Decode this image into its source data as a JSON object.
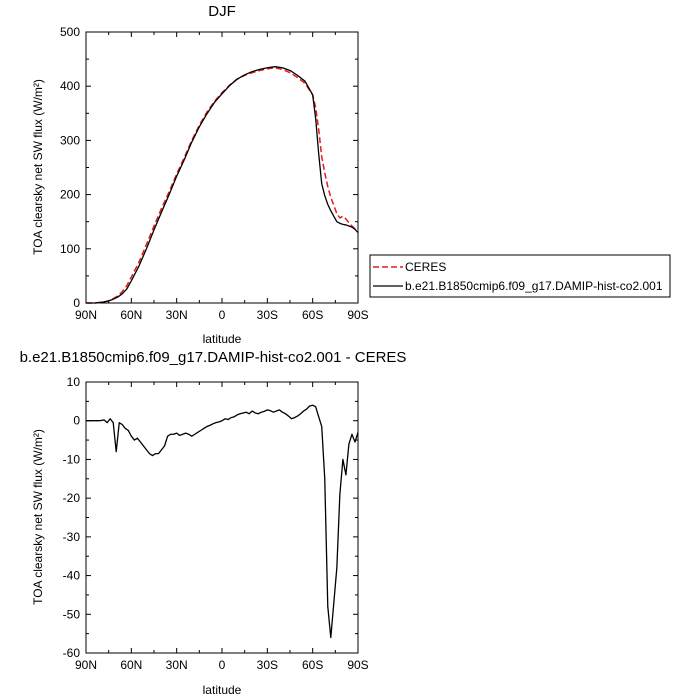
{
  "chart_data": [
    {
      "type": "line",
      "title": "DJF",
      "xlabel": "latitude",
      "ylabel": "TOA clearsky net SW flux (W/m²)",
      "xlim": [
        -90,
        90
      ],
      "ylim": [
        0,
        500
      ],
      "x_ticks": [
        -90,
        -60,
        -30,
        0,
        30,
        60,
        90
      ],
      "x_tick_labels": [
        "90N",
        "60N",
        "30N",
        "0",
        "30S",
        "60S",
        "90S"
      ],
      "y_ticks": [
        0,
        100,
        200,
        300,
        400,
        500
      ],
      "y_tick_labels": [
        "0",
        "100",
        "200",
        "300",
        "400",
        "500"
      ],
      "legend": {
        "placement": "right",
        "entries": [
          "CERES",
          "b.e21.B1850cmip6.f09_g17.DAMIP-hist-co2.001"
        ]
      },
      "series": [
        {
          "name": "CERES",
          "color": "#e41a1c",
          "dash": "dashed",
          "x": [
            -90,
            -87,
            -84,
            -81,
            -78,
            -75,
            -72,
            -69,
            -66,
            -63,
            -60,
            -55,
            -50,
            -45,
            -40,
            -35,
            -30,
            -25,
            -20,
            -15,
            -10,
            -5,
            0,
            5,
            10,
            15,
            20,
            25,
            30,
            35,
            40,
            45,
            50,
            55,
            60,
            62,
            64,
            66,
            68,
            70,
            72,
            74,
            76,
            78,
            80,
            82,
            84,
            86,
            88,
            90
          ],
          "y": [
            0,
            0,
            0,
            1,
            2,
            4,
            8,
            13,
            21,
            32,
            48,
            75,
            108,
            142,
            175,
            205,
            238,
            268,
            300,
            328,
            352,
            372,
            388,
            402,
            413,
            420,
            425,
            429,
            432,
            434,
            431,
            425,
            416,
            405,
            384,
            360,
            320,
            270,
            240,
            215,
            195,
            180,
            165,
            157,
            160,
            155,
            148,
            142,
            137,
            133
          ]
        },
        {
          "name": "b.e21.B1850cmip6.f09_g17.DAMIP-hist-co2.001",
          "color": "#000000",
          "dash": "solid",
          "x": [
            -90,
            -87,
            -84,
            -81,
            -78,
            -75,
            -72,
            -69,
            -66,
            -63,
            -60,
            -55,
            -50,
            -45,
            -40,
            -35,
            -30,
            -25,
            -20,
            -15,
            -10,
            -5,
            0,
            5,
            10,
            15,
            20,
            25,
            30,
            35,
            40,
            45,
            50,
            55,
            60,
            62,
            64,
            66,
            68,
            70,
            72,
            74,
            76,
            78,
            80,
            82,
            84,
            86,
            88,
            90
          ],
          "y": [
            0,
            0,
            0,
            1,
            2,
            4,
            7,
            11,
            17,
            26,
            41,
            68,
            100,
            135,
            168,
            200,
            234,
            264,
            297,
            325,
            349,
            370,
            386,
            401,
            413,
            421,
            427,
            431,
            434,
            436,
            434,
            429,
            420,
            409,
            384,
            340,
            275,
            220,
            198,
            182,
            170,
            160,
            150,
            147,
            145,
            144,
            142,
            140,
            136,
            130
          ]
        }
      ]
    },
    {
      "type": "line",
      "title": "b.e21.B1850cmip6.f09_g17.DAMIP-hist-co2.001 - CERES",
      "xlabel": "latitude",
      "ylabel": "TOA clearsky net SW flux (W/m²)",
      "xlim": [
        -90,
        90
      ],
      "ylim": [
        -60,
        10
      ],
      "x_ticks": [
        -90,
        -60,
        -30,
        0,
        30,
        60,
        90
      ],
      "x_tick_labels": [
        "90N",
        "60N",
        "30N",
        "0",
        "30S",
        "60S",
        "90S"
      ],
      "y_ticks": [
        -60,
        -50,
        -40,
        -30,
        -20,
        -10,
        0,
        10
      ],
      "y_tick_labels": [
        "-60",
        "-50",
        "-40",
        "-30",
        "-20",
        "-10",
        "0",
        "10"
      ],
      "series": [
        {
          "color": "#000000",
          "dash": "solid",
          "x": [
            -90,
            -87,
            -84,
            -81,
            -78,
            -76,
            -74,
            -72,
            -70,
            -68,
            -66,
            -64,
            -62,
            -60,
            -58,
            -56,
            -54,
            -52,
            -50,
            -48,
            -46,
            -44,
            -42,
            -40,
            -38,
            -36,
            -34,
            -32,
            -30,
            -28,
            -26,
            -24,
            -22,
            -20,
            -18,
            -16,
            -14,
            -12,
            -10,
            -8,
            -6,
            -4,
            -2,
            0,
            2,
            4,
            6,
            8,
            10,
            12,
            14,
            16,
            18,
            20,
            22,
            24,
            26,
            28,
            30,
            32,
            34,
            36,
            38,
            40,
            42,
            44,
            46,
            48,
            50,
            52,
            54,
            56,
            58,
            60,
            62,
            64,
            66,
            68,
            70,
            72,
            74,
            76,
            78,
            80,
            82,
            84,
            86,
            88,
            90
          ],
          "y": [
            0,
            0,
            0,
            0,
            0.2,
            -0.5,
            0.5,
            -0.5,
            -8,
            -0.5,
            -1,
            -2,
            -2.5,
            -4,
            -5,
            -4.5,
            -5.5,
            -6.5,
            -7.5,
            -8.5,
            -9,
            -8.5,
            -8.5,
            -7.5,
            -6.5,
            -4,
            -3.5,
            -3.5,
            -3.2,
            -3.8,
            -3.5,
            -3.2,
            -3.5,
            -4,
            -3.5,
            -3,
            -2.5,
            -2,
            -1.5,
            -1.2,
            -0.8,
            -0.5,
            -0.3,
            0,
            0.5,
            0.3,
            0.8,
            1,
            1.5,
            1.8,
            2,
            2.2,
            1.8,
            2.5,
            2,
            1.8,
            2.2,
            2.4,
            2.8,
            2.6,
            2.2,
            2.5,
            2.8,
            2.2,
            1.8,
            1.2,
            0.5,
            0.8,
            1.2,
            1.8,
            2.5,
            3,
            3.8,
            4,
            3.6,
            1,
            -1.5,
            -15,
            -48,
            -56,
            -47,
            -38,
            -19,
            -10,
            -14,
            -6,
            -3.5,
            -5.5,
            -3
          ]
        }
      ]
    }
  ]
}
